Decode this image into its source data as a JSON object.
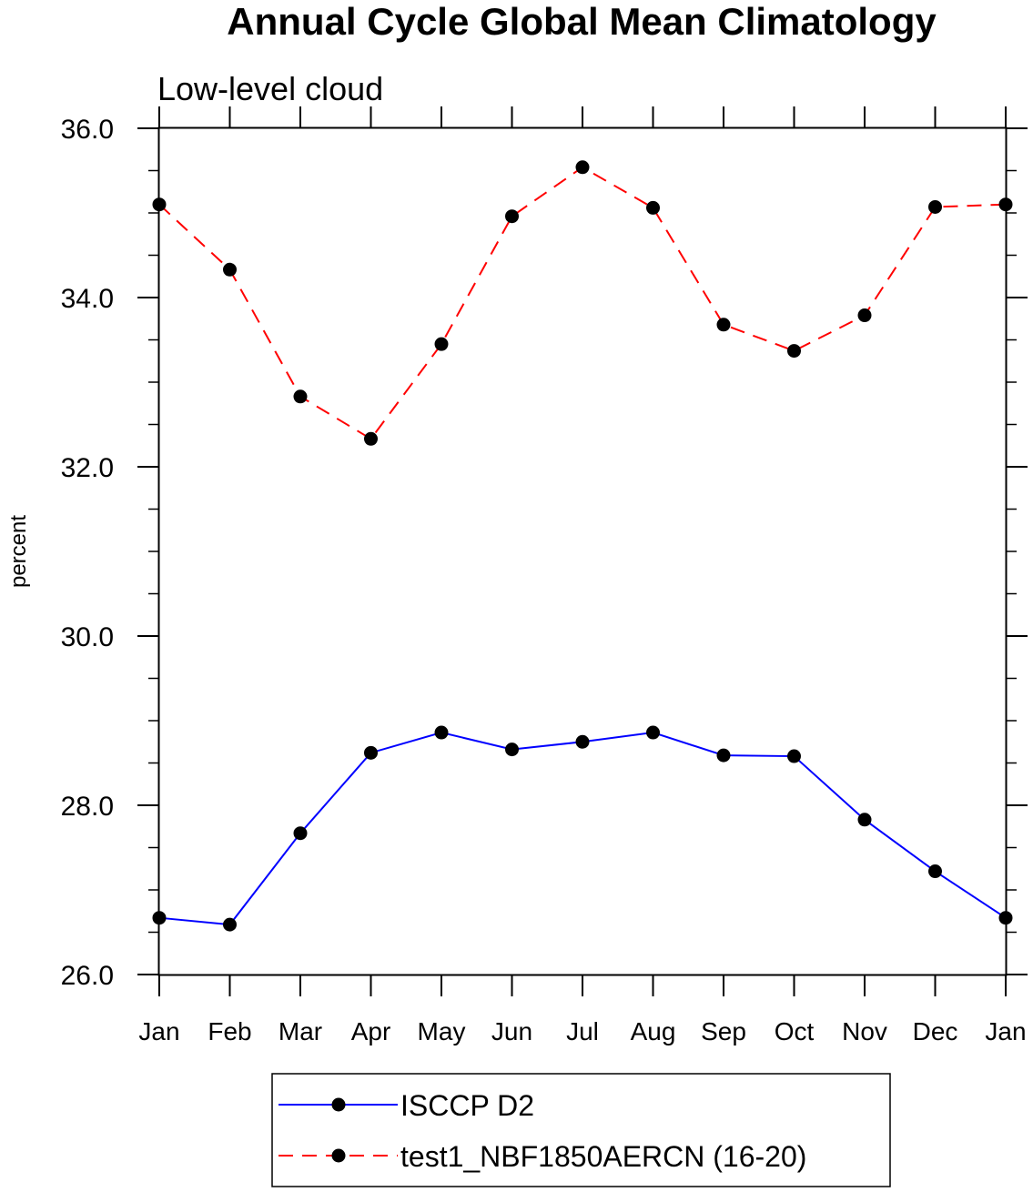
{
  "chart_data": {
    "type": "line",
    "title": "Annual Cycle Global Mean Climatology",
    "subtitle": "Low-level cloud",
    "xlabel": "",
    "ylabel": "percent",
    "categories": [
      "Jan",
      "Feb",
      "Mar",
      "Apr",
      "May",
      "Jun",
      "Jul",
      "Aug",
      "Sep",
      "Oct",
      "Nov",
      "Dec",
      "Jan"
    ],
    "ylim": [
      26.0,
      36.0
    ],
    "yticks": [
      "26.0",
      "28.0",
      "30.0",
      "32.0",
      "34.0",
      "36.0"
    ],
    "ytick_values": [
      26.0,
      28.0,
      30.0,
      32.0,
      34.0,
      36.0
    ],
    "grid": false,
    "legend_position": "bottom",
    "series": [
      {
        "name": "ISCCP D2",
        "color": "#0000ff",
        "style": "solid",
        "marker": "filled-circle",
        "values": [
          26.67,
          26.59,
          27.67,
          28.62,
          28.86,
          28.66,
          28.75,
          28.86,
          28.59,
          28.58,
          27.83,
          27.22,
          26.67
        ]
      },
      {
        "name": "test1_NBF1850AERCN (16-20)",
        "color": "#ff0000",
        "style": "dashed",
        "marker": "filled-circle",
        "values": [
          35.1,
          34.33,
          32.83,
          32.33,
          33.45,
          34.96,
          35.54,
          35.06,
          33.68,
          33.37,
          33.79,
          35.07,
          35.1
        ]
      }
    ]
  }
}
